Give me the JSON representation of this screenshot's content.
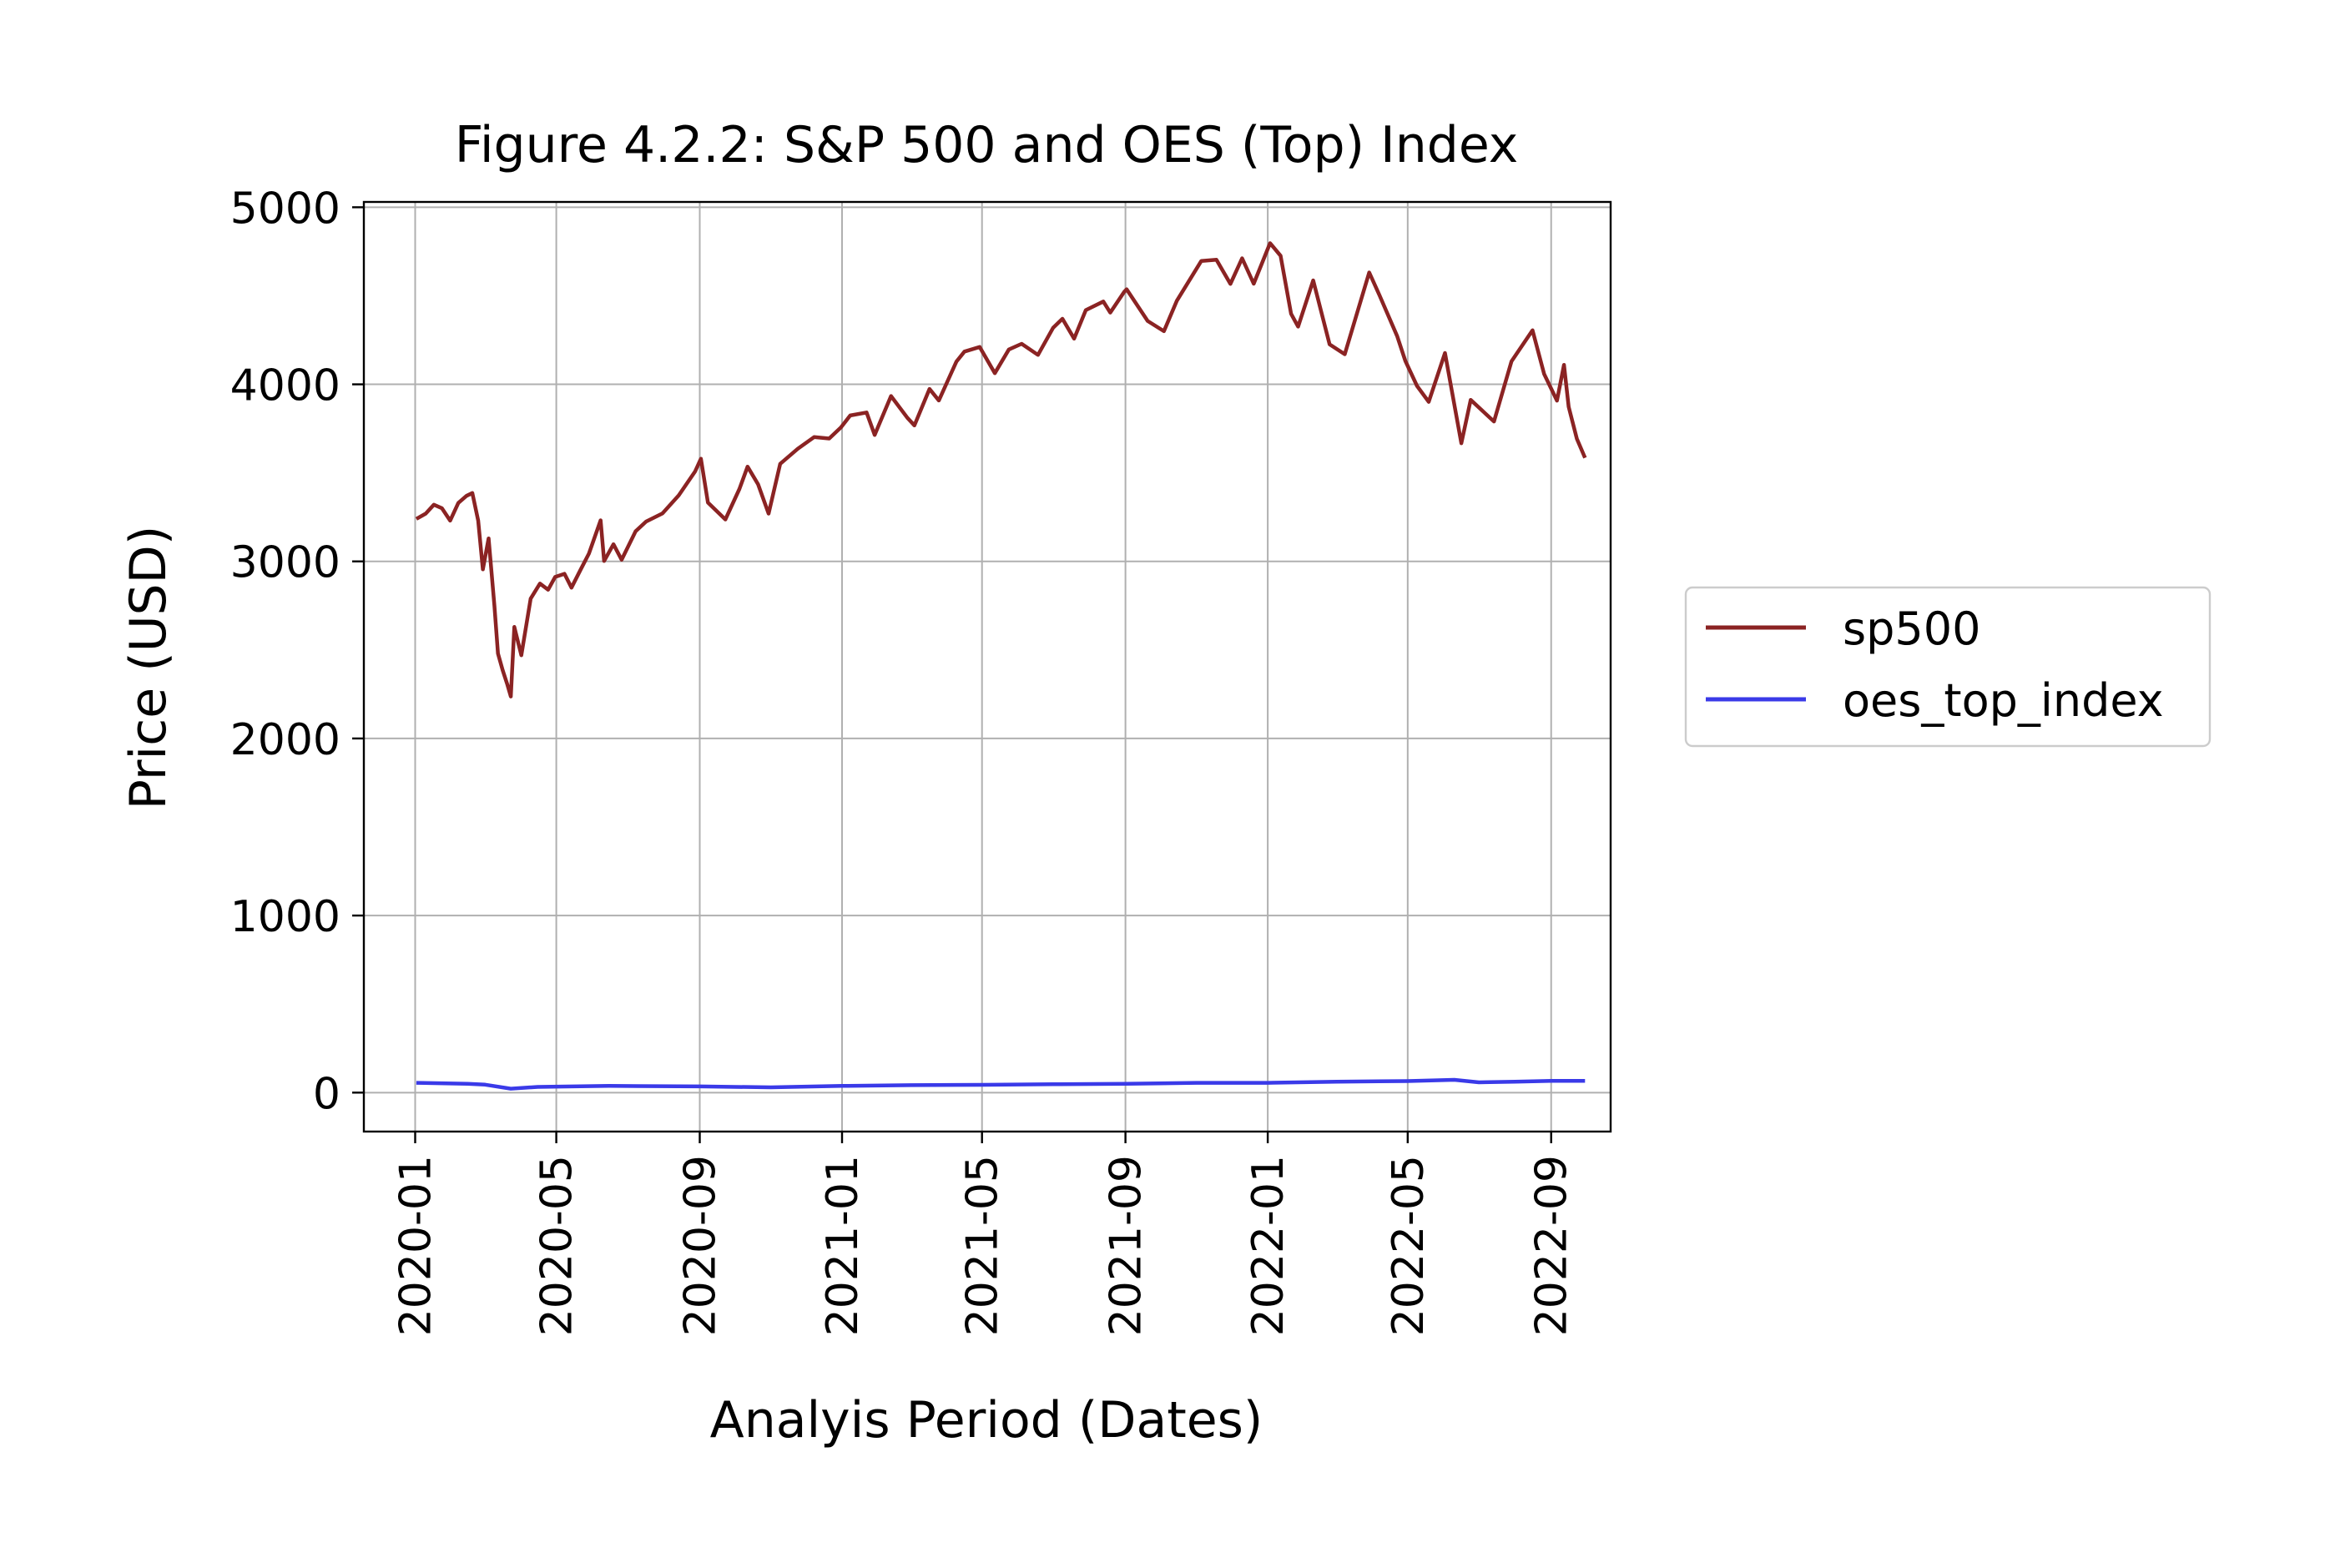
{
  "chart_data": {
    "type": "line",
    "title": "Figure 4.2.2: S&P 500 and OES (Top) Index",
    "xlabel": "Analyis Period (Dates)",
    "ylabel": "Price (USD)",
    "xlim": [
      "2019-11-18",
      "2022-10-22"
    ],
    "ylim": [
      -220,
      5030
    ],
    "grid": true,
    "legend_position": "right-outside",
    "x_ticks": [
      "2020-01",
      "2020-05",
      "2020-09",
      "2021-01",
      "2021-05",
      "2021-09",
      "2022-01",
      "2022-05",
      "2022-09"
    ],
    "y_ticks": [
      0,
      1000,
      2000,
      3000,
      4000,
      5000
    ],
    "series": [
      {
        "name": "sp500",
        "color": "#8b2323",
        "points": [
          [
            "2020-01-02",
            3240
          ],
          [
            "2020-01-10",
            3270
          ],
          [
            "2020-01-17",
            3320
          ],
          [
            "2020-01-24",
            3300
          ],
          [
            "2020-01-31",
            3230
          ],
          [
            "2020-02-07",
            3330
          ],
          [
            "2020-02-14",
            3370
          ],
          [
            "2020-02-19",
            3386
          ],
          [
            "2020-02-24",
            3230
          ],
          [
            "2020-02-28",
            2955
          ],
          [
            "2020-03-04",
            3130
          ],
          [
            "2020-03-09",
            2746
          ],
          [
            "2020-03-12",
            2480
          ],
          [
            "2020-03-16",
            2386
          ],
          [
            "2020-03-20",
            2305
          ],
          [
            "2020-03-23",
            2237
          ],
          [
            "2020-03-26",
            2630
          ],
          [
            "2020-04-01",
            2470
          ],
          [
            "2020-04-09",
            2790
          ],
          [
            "2020-04-17",
            2875
          ],
          [
            "2020-04-24",
            2840
          ],
          [
            "2020-04-30",
            2912
          ],
          [
            "2020-05-08",
            2930
          ],
          [
            "2020-05-14",
            2852
          ],
          [
            "2020-05-22",
            2955
          ],
          [
            "2020-05-29",
            3044
          ],
          [
            "2020-06-08",
            3232
          ],
          [
            "2020-06-11",
            3002
          ],
          [
            "2020-06-19",
            3097
          ],
          [
            "2020-06-26",
            3009
          ],
          [
            "2020-07-08",
            3170
          ],
          [
            "2020-07-17",
            3225
          ],
          [
            "2020-07-31",
            3271
          ],
          [
            "2020-08-14",
            3373
          ],
          [
            "2020-08-28",
            3508
          ],
          [
            "2020-09-02",
            3580
          ],
          [
            "2020-09-08",
            3332
          ],
          [
            "2020-09-23",
            3237
          ],
          [
            "2020-10-05",
            3409
          ],
          [
            "2020-10-12",
            3535
          ],
          [
            "2020-10-21",
            3435
          ],
          [
            "2020-10-30",
            3270
          ],
          [
            "2020-11-09",
            3551
          ],
          [
            "2020-11-24",
            3636
          ],
          [
            "2020-12-08",
            3702
          ],
          [
            "2020-12-21",
            3694
          ],
          [
            "2020-12-31",
            3756
          ],
          [
            "2021-01-08",
            3824
          ],
          [
            "2021-01-22",
            3841
          ],
          [
            "2021-01-29",
            3714
          ],
          [
            "2021-02-12",
            3934
          ],
          [
            "2021-02-26",
            3811
          ],
          [
            "2021-03-04",
            3768
          ],
          [
            "2021-03-17",
            3974
          ],
          [
            "2021-03-25",
            3909
          ],
          [
            "2021-04-09",
            4128
          ],
          [
            "2021-04-16",
            4185
          ],
          [
            "2021-04-29",
            4211
          ],
          [
            "2021-05-12",
            4063
          ],
          [
            "2021-05-24",
            4197
          ],
          [
            "2021-06-04",
            4229
          ],
          [
            "2021-06-18",
            4166
          ],
          [
            "2021-07-01",
            4320
          ],
          [
            "2021-07-09",
            4370
          ],
          [
            "2021-07-19",
            4258
          ],
          [
            "2021-07-29",
            4419
          ],
          [
            "2021-08-13",
            4468
          ],
          [
            "2021-08-19",
            4405
          ],
          [
            "2021-08-31",
            4523
          ],
          [
            "2021-09-02",
            4537
          ],
          [
            "2021-09-20",
            4358
          ],
          [
            "2021-10-04",
            4300
          ],
          [
            "2021-10-15",
            4471
          ],
          [
            "2021-11-05",
            4697
          ],
          [
            "2021-11-18",
            4704
          ],
          [
            "2021-11-30",
            4567
          ],
          [
            "2021-12-10",
            4712
          ],
          [
            "2021-12-20",
            4568
          ],
          [
            "2022-01-03",
            4797
          ],
          [
            "2022-01-12",
            4726
          ],
          [
            "2022-01-21",
            4398
          ],
          [
            "2022-01-27",
            4326
          ],
          [
            "2022-02-09",
            4587
          ],
          [
            "2022-02-23",
            4226
          ],
          [
            "2022-03-08",
            4170
          ],
          [
            "2022-03-29",
            4632
          ],
          [
            "2022-04-07",
            4500
          ],
          [
            "2022-04-22",
            4272
          ],
          [
            "2022-04-29",
            4132
          ],
          [
            "2022-05-09",
            3991
          ],
          [
            "2022-05-19",
            3901
          ],
          [
            "2022-06-02",
            4177
          ],
          [
            "2022-06-16",
            3667
          ],
          [
            "2022-06-24",
            3912
          ],
          [
            "2022-07-14",
            3790
          ],
          [
            "2022-07-29",
            4130
          ],
          [
            "2022-08-16",
            4305
          ],
          [
            "2022-08-26",
            4058
          ],
          [
            "2022-09-06",
            3908
          ],
          [
            "2022-09-12",
            4110
          ],
          [
            "2022-09-16",
            3873
          ],
          [
            "2022-09-23",
            3693
          ],
          [
            "2022-09-30",
            3585
          ]
        ]
      },
      {
        "name": "oes_top_index",
        "color": "#3a3ae8",
        "points": [
          [
            "2020-01-02",
            55
          ],
          [
            "2020-02-15",
            50
          ],
          [
            "2020-03-01",
            45
          ],
          [
            "2020-03-23",
            22
          ],
          [
            "2020-04-15",
            32
          ],
          [
            "2020-06-15",
            38
          ],
          [
            "2020-09-01",
            35
          ],
          [
            "2020-11-01",
            30
          ],
          [
            "2021-01-01",
            38
          ],
          [
            "2021-03-01",
            42
          ],
          [
            "2021-05-01",
            44
          ],
          [
            "2021-07-01",
            47
          ],
          [
            "2021-09-01",
            50
          ],
          [
            "2021-11-01",
            55
          ],
          [
            "2022-01-01",
            55
          ],
          [
            "2022-03-01",
            62
          ],
          [
            "2022-05-01",
            65
          ],
          [
            "2022-06-10",
            72
          ],
          [
            "2022-07-01",
            58
          ],
          [
            "2022-08-01",
            62
          ],
          [
            "2022-09-01",
            66
          ],
          [
            "2022-09-30",
            66
          ]
        ]
      }
    ]
  }
}
